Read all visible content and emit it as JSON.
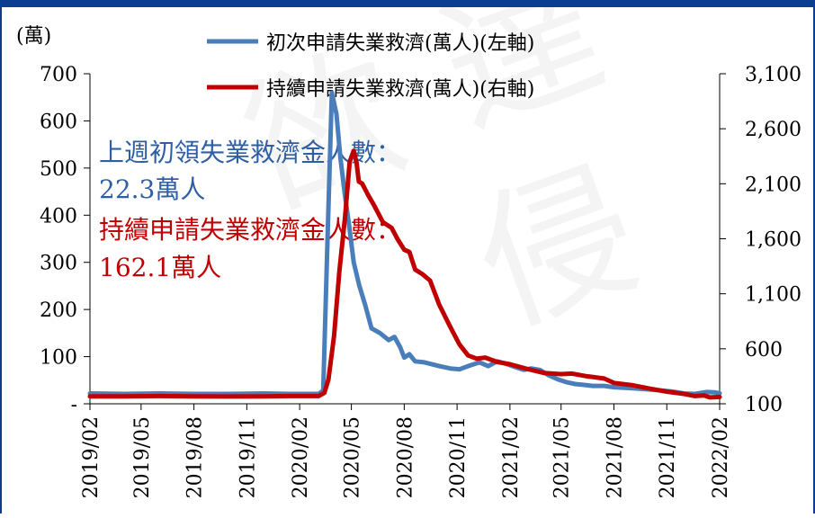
{
  "chart_data": {
    "type": "line",
    "y_unit_label": "(萬)",
    "legend": [
      {
        "label": "初次申請失業救濟(萬人)(左軸)",
        "color": "#4a7ebb"
      },
      {
        "label": "持續申請失業救濟(萬人)(右軸)",
        "color": "#c00000"
      }
    ],
    "annotations": [
      {
        "text": "上週初領失業救濟金人數：",
        "color": "#2e5fa3"
      },
      {
        "text": "22.3萬人",
        "color": "#2e5fa3"
      },
      {
        "text": "持續申請失業救濟金人數：",
        "color": "#c00000"
      },
      {
        "text": "162.1萬人",
        "color": "#c00000"
      }
    ],
    "left_axis": {
      "ylim": [
        0,
        700
      ],
      "ticks": [
        "-",
        "100",
        "200",
        "300",
        "400",
        "500",
        "600",
        "700"
      ]
    },
    "right_axis": {
      "ylim": [
        100,
        3100
      ],
      "ticks": [
        "100",
        "600",
        "1,100",
        "1,600",
        "2,100",
        "2,600",
        "3,100"
      ]
    },
    "x_ticks": [
      "2019/02",
      "2019/05",
      "2019/08",
      "2019/11",
      "2020/02",
      "2020/05",
      "2020/08",
      "2020/11",
      "2021/02",
      "2021/05",
      "2021/08",
      "2021/11",
      "2022/02"
    ],
    "x_range": [
      "2019-02-01",
      "2022-02-01"
    ],
    "series": [
      {
        "name": "初次申請失業救濟(萬人)(左軸)",
        "axis": "left",
        "color": "#4a7ebb",
        "points": [
          [
            "2019-02-01",
            22
          ],
          [
            "2019-04-01",
            21
          ],
          [
            "2019-06-01",
            22
          ],
          [
            "2019-08-01",
            21
          ],
          [
            "2019-10-01",
            21
          ],
          [
            "2019-12-01",
            22
          ],
          [
            "2020-01-15",
            21
          ],
          [
            "2020-03-05",
            21
          ],
          [
            "2020-03-13",
            28
          ],
          [
            "2020-03-20",
            330
          ],
          [
            "2020-03-28",
            660
          ],
          [
            "2020-04-05",
            615
          ],
          [
            "2020-04-12",
            520
          ],
          [
            "2020-04-20",
            440
          ],
          [
            "2020-04-27",
            380
          ],
          [
            "2020-05-05",
            300
          ],
          [
            "2020-05-15",
            250
          ],
          [
            "2020-05-25",
            210
          ],
          [
            "2020-06-05",
            160
          ],
          [
            "2020-06-20",
            150
          ],
          [
            "2020-07-05",
            135
          ],
          [
            "2020-07-15",
            142
          ],
          [
            "2020-07-25",
            120
          ],
          [
            "2020-08-01",
            98
          ],
          [
            "2020-08-10",
            105
          ],
          [
            "2020-08-20",
            90
          ],
          [
            "2020-09-05",
            88
          ],
          [
            "2020-10-01",
            80
          ],
          [
            "2020-10-20",
            75
          ],
          [
            "2020-11-05",
            73
          ],
          [
            "2020-11-20",
            80
          ],
          [
            "2020-12-10",
            88
          ],
          [
            "2020-12-25",
            80
          ],
          [
            "2021-01-10",
            90
          ],
          [
            "2021-01-25",
            85
          ],
          [
            "2021-02-10",
            78
          ],
          [
            "2021-02-25",
            72
          ],
          [
            "2021-03-10",
            75
          ],
          [
            "2021-03-25",
            72
          ],
          [
            "2021-04-10",
            60
          ],
          [
            "2021-04-25",
            52
          ],
          [
            "2021-05-10",
            46
          ],
          [
            "2021-05-25",
            42
          ],
          [
            "2021-06-10",
            40
          ],
          [
            "2021-06-25",
            38
          ],
          [
            "2021-07-15",
            38
          ],
          [
            "2021-08-01",
            35
          ],
          [
            "2021-08-20",
            34
          ],
          [
            "2021-09-15",
            32
          ],
          [
            "2021-10-15",
            29
          ],
          [
            "2021-11-10",
            26
          ],
          [
            "2021-12-01",
            22
          ],
          [
            "2021-12-20",
            21
          ],
          [
            "2022-01-10",
            25
          ],
          [
            "2022-01-25",
            24
          ],
          [
            "2022-02-01",
            22.3
          ]
        ]
      },
      {
        "name": "持續申請失業救濟(萬人)(右軸)",
        "axis": "right",
        "color": "#c00000",
        "points": [
          [
            "2019-02-01",
            168
          ],
          [
            "2019-04-01",
            168
          ],
          [
            "2019-06-01",
            170
          ],
          [
            "2019-08-01",
            168
          ],
          [
            "2019-10-01",
            166
          ],
          [
            "2019-12-01",
            168
          ],
          [
            "2020-01-15",
            170
          ],
          [
            "2020-03-05",
            170
          ],
          [
            "2020-03-15",
            200
          ],
          [
            "2020-03-22",
            320
          ],
          [
            "2020-04-01",
            720
          ],
          [
            "2020-04-10",
            1300
          ],
          [
            "2020-04-20",
            1800
          ],
          [
            "2020-04-28",
            2300
          ],
          [
            "2020-05-05",
            2400
          ],
          [
            "2020-05-10",
            2290
          ],
          [
            "2020-05-14",
            2120
          ],
          [
            "2020-05-20",
            2100
          ],
          [
            "2020-05-30",
            2000
          ],
          [
            "2020-06-10",
            1900
          ],
          [
            "2020-06-25",
            1750
          ],
          [
            "2020-07-10",
            1700
          ],
          [
            "2020-07-20",
            1600
          ],
          [
            "2020-08-01",
            1500
          ],
          [
            "2020-08-10",
            1480
          ],
          [
            "2020-08-20",
            1320
          ],
          [
            "2020-09-01",
            1280
          ],
          [
            "2020-09-15",
            1220
          ],
          [
            "2020-10-01",
            1000
          ],
          [
            "2020-10-20",
            800
          ],
          [
            "2020-11-05",
            640
          ],
          [
            "2020-11-20",
            540
          ],
          [
            "2020-12-05",
            510
          ],
          [
            "2020-12-20",
            520
          ],
          [
            "2021-01-10",
            480
          ],
          [
            "2021-02-01",
            460
          ],
          [
            "2021-03-01",
            420
          ],
          [
            "2021-04-01",
            380
          ],
          [
            "2021-05-01",
            370
          ],
          [
            "2021-05-20",
            375
          ],
          [
            "2021-06-15",
            350
          ],
          [
            "2021-07-15",
            330
          ],
          [
            "2021-08-01",
            290
          ],
          [
            "2021-09-01",
            270
          ],
          [
            "2021-10-01",
            240
          ],
          [
            "2021-11-01",
            210
          ],
          [
            "2021-12-01",
            190
          ],
          [
            "2021-12-20",
            170
          ],
          [
            "2022-01-05",
            175
          ],
          [
            "2022-01-15",
            158
          ],
          [
            "2022-02-01",
            162.1
          ]
        ]
      }
    ],
    "grid": false,
    "legend_position": "top"
  }
}
